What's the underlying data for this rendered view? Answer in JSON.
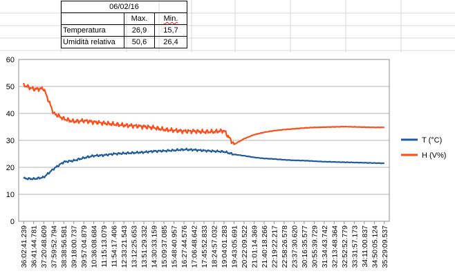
{
  "summary_table": {
    "date": "06/02/16",
    "header_max": "Max.",
    "header_min": "Min.",
    "rows": [
      {
        "label": "Temperatura",
        "max": "26,9",
        "min": "15,7"
      },
      {
        "label": "Umidità relativa",
        "max": "50,6",
        "min": "26,4"
      }
    ]
  },
  "colors": {
    "temperature": "#1f5b99",
    "humidity": "#ff4d1a",
    "grid": "#b3b3b3",
    "axis": "#8c8c8c",
    "sheet_grid": "#d9d9d9"
  },
  "chart_data": {
    "type": "line",
    "title": "",
    "xlabel": "",
    "ylabel": "",
    "ylim": [
      0,
      60
    ],
    "y_ticks": [
      0,
      10,
      20,
      30,
      40,
      50,
      60
    ],
    "grid": true,
    "legend_position": "right",
    "x_tick_labels": [
      "36:02:41.239",
      "36:41:44.781",
      "37:20:48.609",
      "37:59:52.794",
      "38:38:56.581",
      "39:18:00.737",
      "39:57:04.879",
      "10:36:08.684",
      "11:15:13.079",
      "11:54:17.406",
      "12:33:21.543",
      "13:12:25.653",
      "13:51:29.332",
      "14:30:33.159",
      "15:09:37.085",
      "15:48:40.957",
      "16:27:44.576",
      "17:06:48.642",
      "17:45:52.833",
      "18:24:57.032",
      "19:04:01.283",
      "19:43:05.691",
      "20:22:09.522",
      "21:01:14.369",
      "21:40:18.266",
      "22:19:22.217",
      "22:58:26.578",
      "23:37:30.620",
      "30:16:35.577",
      "30:55:39.729",
      "31:34:43.742",
      "32:13:48.364",
      "32:52:52.779",
      "33:31:57.173",
      "34:11:00.837",
      "34:50:05.124",
      "35:29:09.537"
    ],
    "series": [
      {
        "name": "T (°C)",
        "values": [
          15.9,
          15.7,
          16.3,
          19.5,
          22.0,
          22.5,
          23.5,
          24.3,
          24.5,
          25.0,
          25.2,
          25.4,
          25.6,
          26.0,
          26.1,
          26.3,
          26.6,
          26.5,
          26.2,
          26.0,
          25.8,
          24.8,
          24.3,
          23.7,
          23.3,
          23.1,
          22.8,
          22.6,
          22.5,
          22.3,
          22.1,
          22.0,
          21.9,
          21.8,
          21.7,
          21.6,
          21.5
        ]
      },
      {
        "name": "H (V%)",
        "values": [
          50.5,
          49.0,
          49.2,
          40.0,
          38.0,
          37.0,
          37.3,
          36.8,
          36.4,
          36.0,
          35.6,
          35.4,
          35.1,
          34.7,
          34.0,
          33.7,
          33.4,
          33.4,
          33.2,
          33.2,
          33.6,
          28.5,
          30.6,
          32.1,
          33.0,
          33.6,
          34.0,
          34.3,
          34.6,
          34.8,
          34.9,
          35.0,
          35.1,
          35.0,
          34.9,
          34.8,
          34.8
        ]
      }
    ]
  }
}
